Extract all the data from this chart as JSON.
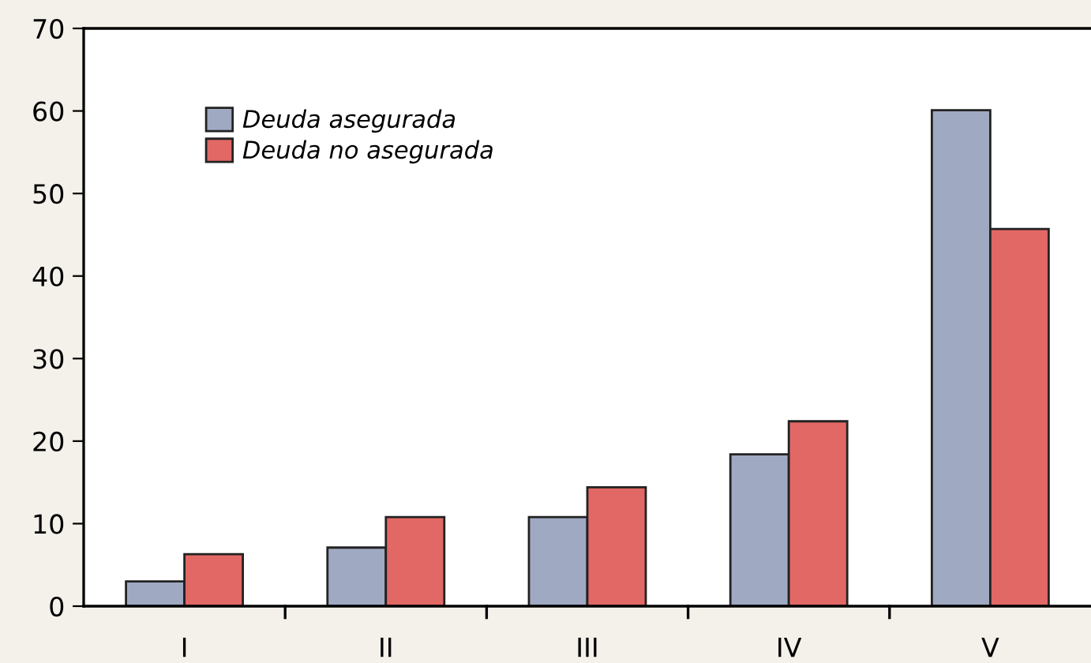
{
  "chart_data": {
    "type": "bar",
    "categories": [
      "I",
      "II",
      "III",
      "IV",
      "V"
    ],
    "series": [
      {
        "name": "Deuda asegurada",
        "color": "#a0a9c2",
        "values": [
          3.0,
          7.1,
          10.8,
          18.4,
          60.1
        ]
      },
      {
        "name": "Deuda no asegurada",
        "color": "#e26865",
        "values": [
          6.3,
          10.8,
          14.4,
          22.4,
          45.7
        ]
      }
    ],
    "ylim": [
      0,
      70
    ],
    "yticks": [
      0,
      10,
      20,
      30,
      40,
      50,
      60,
      70
    ],
    "legend": "top left",
    "grid": false
  }
}
